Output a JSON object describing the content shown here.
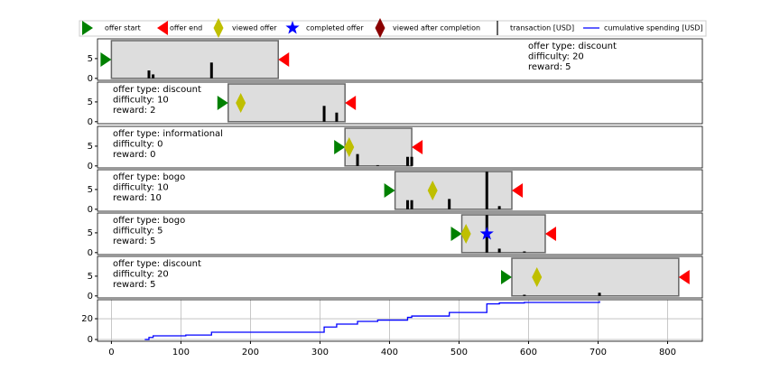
{
  "chart_data": {
    "type": "timeline",
    "legend": [
      {
        "name": "offer start",
        "color": "green",
        "marker": "start"
      },
      {
        "name": "offer end",
        "color": "red",
        "marker": "end"
      },
      {
        "name": "viewed offer",
        "color": "#bfbf00",
        "marker": "diamond"
      },
      {
        "name": "completed offer",
        "color": "blue",
        "marker": "star"
      },
      {
        "name": "viewed after completion",
        "color": "darkred",
        "marker": "diamond"
      },
      {
        "name": "transaction [USD]",
        "color": "black",
        "marker": "vline"
      },
      {
        "name": "cumulative spending [USD]",
        "color": "blue",
        "marker": "line"
      }
    ],
    "xlim": [
      -20,
      850
    ],
    "xticks": [
      0,
      100,
      200,
      300,
      400,
      500,
      600,
      700,
      800
    ],
    "offer_ylim": [
      -0.5,
      10
    ],
    "offer_yticks": [
      0,
      5
    ],
    "offers": [
      {
        "type_label": "offer type: discount",
        "difficulty_label": "difficulty: 20",
        "reward_label": "reward: 5",
        "text_corner": "upper right",
        "start": 0,
        "end": 240,
        "viewed": null,
        "completed": null,
        "transactions": {
          "x": [
            54,
            60,
            144
          ],
          "values": [
            2,
            1,
            4
          ]
        }
      },
      {
        "type_label": "offer type: discount",
        "difficulty_label": "difficulty: 10",
        "reward_label": "reward: 2",
        "text_corner": "upper left",
        "start": 168,
        "end": 336,
        "viewed": 186,
        "completed": null,
        "transactions": {
          "x": [
            306,
            324
          ],
          "values": [
            4,
            2.3
          ]
        }
      },
      {
        "type_label": "offer type: informational",
        "difficulty_label": "difficulty: 0",
        "reward_label": "reward: 0",
        "text_corner": "upper left",
        "start": 336,
        "end": 432,
        "viewed": 342,
        "completed": null,
        "transactions": {
          "x": [
            354,
            383,
            426,
            432
          ],
          "values": [
            3,
            0.2,
            2.3,
            2.3
          ]
        }
      },
      {
        "type_label": "offer type: bogo",
        "difficulty_label": "difficulty: 10",
        "reward_label": "reward: 10",
        "text_corner": "upper left",
        "start": 408,
        "end": 576,
        "viewed": 462,
        "completed": null,
        "transactions": {
          "x": [
            426,
            432,
            486,
            540,
            558
          ],
          "values": [
            2.3,
            2.3,
            2.6,
            9.5,
            0.8
          ]
        }
      },
      {
        "type_label": "offer type: bogo",
        "difficulty_label": "difficulty: 5",
        "reward_label": "reward: 5",
        "text_corner": "upper left",
        "start": 504,
        "end": 624,
        "viewed": 510,
        "completed": 540,
        "transactions": {
          "x": [
            540,
            558,
            594
          ],
          "values": [
            9.5,
            1,
            0.3
          ]
        }
      },
      {
        "type_label": "offer type: discount",
        "difficulty_label": "difficulty: 20",
        "reward_label": "reward: 5",
        "text_corner": "upper left",
        "start": 576,
        "end": 816,
        "viewed": 612,
        "completed": null,
        "transactions": {
          "x": [
            594,
            702
          ],
          "values": [
            0.3,
            0.8
          ]
        }
      }
    ],
    "cumulative": {
      "ylim": [
        -1.7,
        38.3
      ],
      "yticks": [
        0,
        20
      ],
      "grid": true,
      "x": [
        48,
        54,
        60,
        107,
        144,
        306,
        324,
        354,
        383,
        426,
        432,
        486,
        540,
        558,
        594,
        702
      ],
      "values": [
        0,
        2,
        3.5,
        4.3,
        7,
        12,
        14.8,
        17.4,
        18.7,
        21.3,
        22.6,
        26,
        34.3,
        35.2,
        35.7,
        37
      ]
    }
  }
}
